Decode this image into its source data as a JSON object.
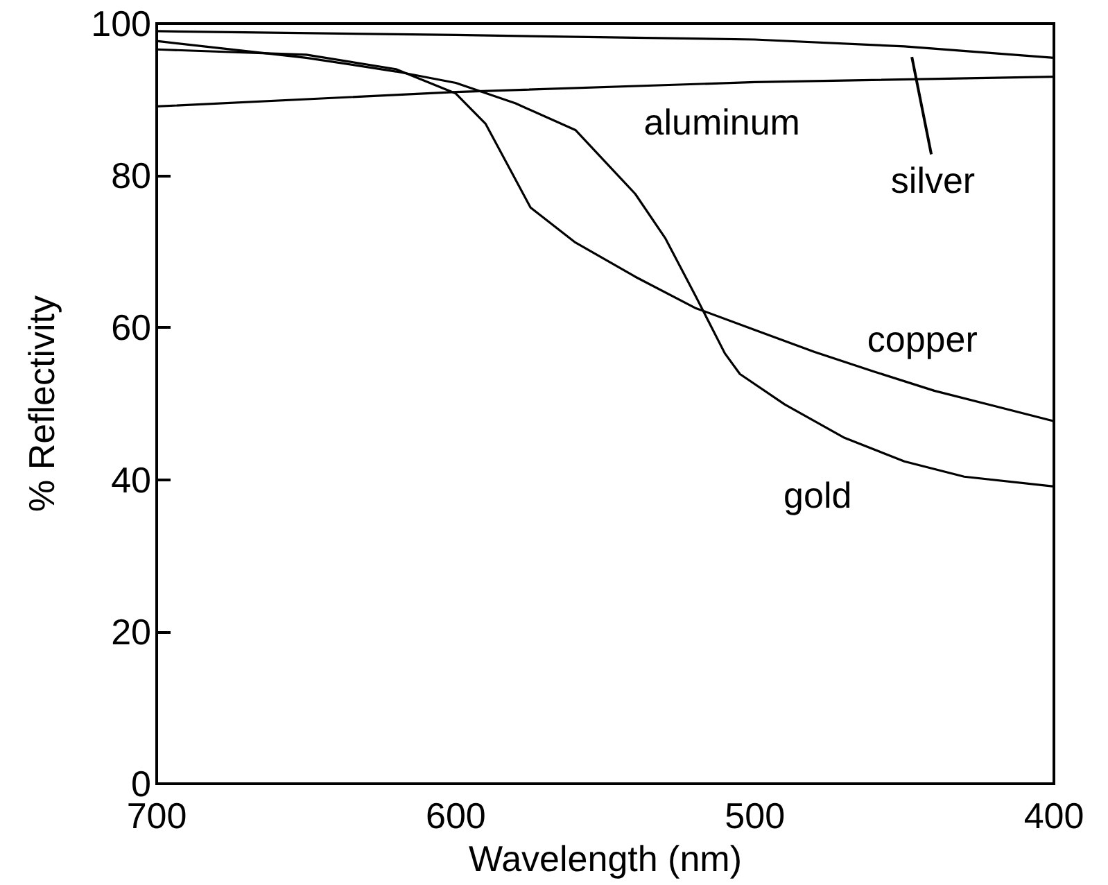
{
  "chart_data": {
    "type": "line",
    "xlabel": "Wavelength (nm)",
    "ylabel": "% Reflectivity",
    "xlim": [
      700,
      400
    ],
    "xticks": [
      700,
      600,
      500,
      400
    ],
    "ylim": [
      0,
      100
    ],
    "yticks": [
      0,
      20,
      40,
      60,
      80,
      100
    ],
    "grid": false,
    "legend": false,
    "marker": "none",
    "line_style": "solid",
    "series": [
      {
        "name": "silver",
        "color": "#000000",
        "x": [
          700,
          600,
          500,
          450,
          400
        ],
        "values": [
          99.0,
          98.5,
          97.9,
          97.0,
          95.5
        ]
      },
      {
        "name": "aluminum",
        "color": "#000000",
        "x": [
          700,
          600,
          500,
          400
        ],
        "values": [
          89.1,
          91.0,
          92.3,
          93.0
        ]
      },
      {
        "name": "copper",
        "color": "#000000",
        "x": [
          700,
          650,
          620,
          600,
          590,
          575,
          560,
          540,
          520,
          500,
          480,
          460,
          440,
          420,
          400
        ],
        "values": [
          96.6,
          95.9,
          94.0,
          90.8,
          86.8,
          75.8,
          71.2,
          66.7,
          62.6,
          59.7,
          56.8,
          54.2,
          51.7,
          49.7,
          47.7
        ]
      },
      {
        "name": "gold",
        "color": "#000000",
        "x": [
          700,
          650,
          620,
          600,
          580,
          560,
          540,
          530,
          520,
          510,
          505,
          490,
          470,
          450,
          430,
          400
        ],
        "values": [
          97.7,
          95.5,
          93.7,
          92.2,
          89.5,
          86.0,
          77.6,
          71.8,
          64.3,
          56.6,
          53.9,
          49.9,
          45.5,
          42.4,
          40.4,
          39.1
        ]
      }
    ]
  }
}
